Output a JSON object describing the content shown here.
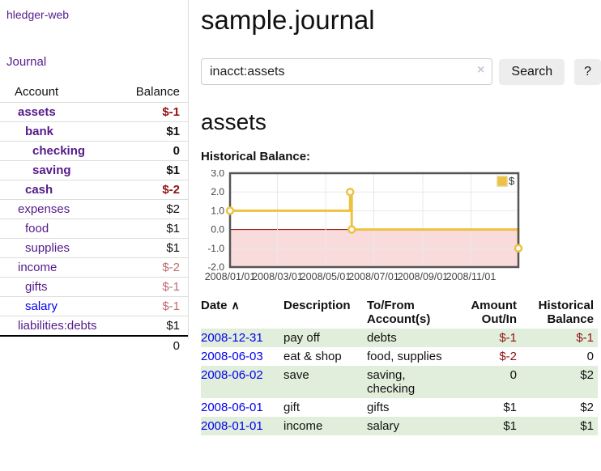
{
  "brand": "hledger-web",
  "sidebar": {
    "nav": "Journal",
    "accounts_header": {
      "account": "Account",
      "balance": "Balance"
    },
    "accounts": [
      {
        "name": "assets",
        "balance": "$-1",
        "level": 1,
        "in_query": true,
        "neg": "strong",
        "link": "visited"
      },
      {
        "name": "bank",
        "balance": "$1",
        "level": 2,
        "in_query": true,
        "neg": null,
        "link": "visited"
      },
      {
        "name": "checking",
        "balance": "0",
        "level": 3,
        "in_query": true,
        "neg": null,
        "link": "visited"
      },
      {
        "name": "saving",
        "balance": "$1",
        "level": 3,
        "in_query": true,
        "neg": null,
        "link": "visited"
      },
      {
        "name": "cash",
        "balance": "$-2",
        "level": 2,
        "in_query": true,
        "neg": "strong",
        "link": "visited"
      },
      {
        "name": "expenses",
        "balance": "$2",
        "level": 1,
        "in_query": false,
        "neg": null,
        "link": "visited"
      },
      {
        "name": "food",
        "balance": "$1",
        "level": 2,
        "in_query": false,
        "neg": null,
        "link": "visited"
      },
      {
        "name": "supplies",
        "balance": "$1",
        "level": 2,
        "in_query": false,
        "neg": null,
        "link": "visited"
      },
      {
        "name": "income",
        "balance": "$-2",
        "level": 1,
        "in_query": false,
        "neg": "light",
        "link": "visited"
      },
      {
        "name": "gifts",
        "balance": "$-1",
        "level": 2,
        "in_query": false,
        "neg": "light",
        "link": "visited"
      },
      {
        "name": "salary",
        "balance": "$-1",
        "level": 2,
        "in_query": false,
        "neg": "light",
        "link": "unvisited"
      },
      {
        "name": "liabilities:debts",
        "balance": "$1",
        "level": 1,
        "in_query": false,
        "neg": null,
        "link": "visited"
      }
    ],
    "total": "0"
  },
  "header": {
    "title": "sample.journal"
  },
  "search": {
    "value": "inacct:assets",
    "clear_icon": "×",
    "button": "Search",
    "help_button": "?"
  },
  "account_page": {
    "heading": "assets",
    "chart_label": "Historical Balance:"
  },
  "chart_data": {
    "type": "line",
    "step": true,
    "title": "Historical Balance",
    "series": [
      {
        "name": "$",
        "color": "#edc240",
        "points": [
          {
            "date": "2008-01-01",
            "value": 1
          },
          {
            "date": "2008-06-01",
            "value": 2
          },
          {
            "date": "2008-06-02",
            "value": 2
          },
          {
            "date": "2008-06-03",
            "value": 0
          },
          {
            "date": "2008-12-31",
            "value": -1
          }
        ]
      }
    ],
    "ylim": [
      -2,
      3
    ],
    "y_ticks": [
      "3.0",
      "2.0",
      "1.0",
      "0.0",
      "-1.0",
      "-2.0"
    ],
    "x_ticks": [
      "2008/01/01",
      "2008/03/01",
      "2008/05/01",
      "2008/07/01",
      "2008/09/01",
      "2008/11/01"
    ],
    "x_range": [
      "2008-01-01",
      "2008-12-31"
    ],
    "legend": "$",
    "legend_position": "top-right",
    "grid": true,
    "grid_color": "#e8e8e8",
    "border_color": "#555555",
    "zero_line_color": "#8b0000",
    "negative_region_color": "#fadbdb"
  },
  "table": {
    "headers": {
      "date": "Date",
      "description": "Description",
      "accounts": "To/From Account(s)",
      "amount": "Amount Out/In",
      "balance": "Historical Balance"
    },
    "sort_icon": "∧",
    "rows": [
      {
        "date": "2008-12-31",
        "description": "pay off",
        "accounts": "debts",
        "amount": "$-1",
        "balance": "$-1",
        "amount_neg": true,
        "balance_neg": true,
        "highlight": true
      },
      {
        "date": "2008-06-03",
        "description": "eat & shop",
        "accounts": "food, supplies",
        "amount": "$-2",
        "balance": "0",
        "amount_neg": true,
        "balance_neg": false,
        "highlight": false
      },
      {
        "date": "2008-06-02",
        "description": "save",
        "accounts": "saving, checking",
        "amount": "0",
        "balance": "$2",
        "amount_neg": false,
        "balance_neg": false,
        "highlight": true
      },
      {
        "date": "2008-06-01",
        "description": "gift",
        "accounts": "gifts",
        "amount": "$1",
        "balance": "$2",
        "amount_neg": false,
        "balance_neg": false,
        "highlight": false
      },
      {
        "date": "2008-01-01",
        "description": "income",
        "accounts": "salary",
        "amount": "$1",
        "balance": "$1",
        "amount_neg": false,
        "balance_neg": false,
        "highlight": true
      }
    ]
  },
  "colors": {
    "link_visited": "#551a8b",
    "link_unvisited": "#0000ee",
    "negative_strong": "#8f1212",
    "negative_light": "#bd6c6c",
    "row_highlight": "#e1eedb",
    "chart_line": "#edc240"
  }
}
